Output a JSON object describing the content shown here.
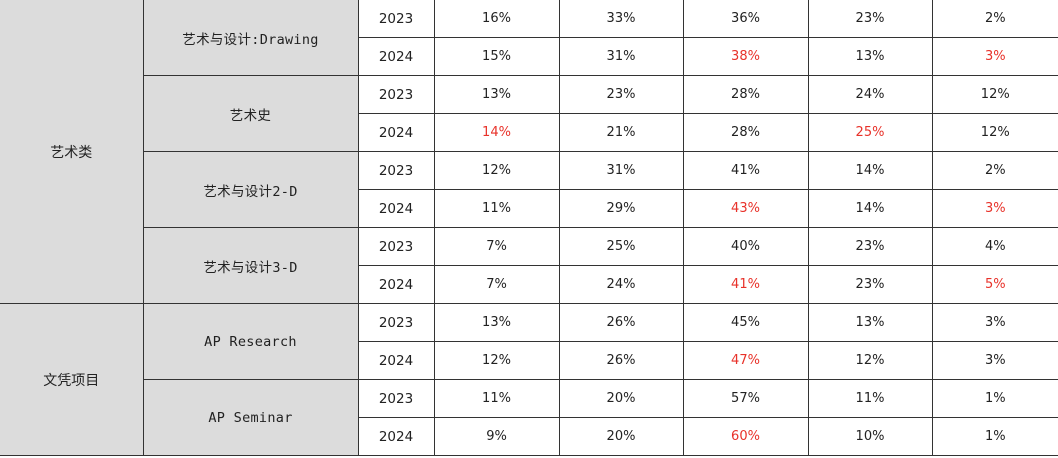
{
  "table": {
    "rows": [
      {
        "category": "艺术类",
        "subject": "艺术与设计:Drawing",
        "year": "2023",
        "values": [
          "16%",
          "33%",
          "36%",
          "23%",
          "2%"
        ],
        "highlight": [
          false,
          false,
          false,
          false,
          false
        ]
      },
      {
        "category": "艺术类",
        "subject": "艺术与设计:Drawing",
        "year": "2024",
        "values": [
          "15%",
          "31%",
          "38%",
          "13%",
          "3%"
        ],
        "highlight": [
          false,
          false,
          true,
          false,
          true
        ]
      },
      {
        "category": "艺术类",
        "subject": "艺术史",
        "year": "2023",
        "values": [
          "13%",
          "23%",
          "28%",
          "24%",
          "12%"
        ],
        "highlight": [
          false,
          false,
          false,
          false,
          false
        ]
      },
      {
        "category": "艺术类",
        "subject": "艺术史",
        "year": "2024",
        "values": [
          "14%",
          "21%",
          "28%",
          "25%",
          "12%"
        ],
        "highlight": [
          true,
          false,
          false,
          true,
          false
        ]
      },
      {
        "category": "艺术类",
        "subject": "艺术与设计2-D",
        "year": "2023",
        "values": [
          "12%",
          "31%",
          "41%",
          "14%",
          "2%"
        ],
        "highlight": [
          false,
          false,
          false,
          false,
          false
        ]
      },
      {
        "category": "艺术类",
        "subject": "艺术与设计2-D",
        "year": "2024",
        "values": [
          "11%",
          "29%",
          "43%",
          "14%",
          "3%"
        ],
        "highlight": [
          false,
          false,
          true,
          false,
          true
        ]
      },
      {
        "category": "艺术类",
        "subject": "艺术与设计3-D",
        "year": "2023",
        "values": [
          "7%",
          "25%",
          "40%",
          "23%",
          "4%"
        ],
        "highlight": [
          false,
          false,
          false,
          false,
          false
        ]
      },
      {
        "category": "艺术类",
        "subject": "艺术与设计3-D",
        "year": "2024",
        "values": [
          "7%",
          "24%",
          "41%",
          "23%",
          "5%"
        ],
        "highlight": [
          false,
          false,
          true,
          false,
          true
        ]
      },
      {
        "category": "文凭项目",
        "subject": "AP Research",
        "year": "2023",
        "values": [
          "13%",
          "26%",
          "45%",
          "13%",
          "3%"
        ],
        "highlight": [
          false,
          false,
          false,
          false,
          false
        ]
      },
      {
        "category": "文凭项目",
        "subject": "AP Research",
        "year": "2024",
        "values": [
          "12%",
          "26%",
          "47%",
          "12%",
          "3%"
        ],
        "highlight": [
          false,
          false,
          true,
          false,
          false
        ]
      },
      {
        "category": "文凭项目",
        "subject": "AP Seminar",
        "year": "2023",
        "values": [
          "11%",
          "20%",
          "57%",
          "11%",
          "1%"
        ],
        "highlight": [
          false,
          false,
          false,
          false,
          false
        ]
      },
      {
        "category": "文凭项目",
        "subject": "AP Seminar",
        "year": "2024",
        "values": [
          "9%",
          "20%",
          "60%",
          "10%",
          "1%"
        ],
        "highlight": [
          false,
          false,
          true,
          false,
          false
        ]
      }
    ]
  },
  "colors": {
    "highlight": "#e8322a",
    "header_cell_background": "#dcdcdc",
    "grid_line": "#333333"
  }
}
